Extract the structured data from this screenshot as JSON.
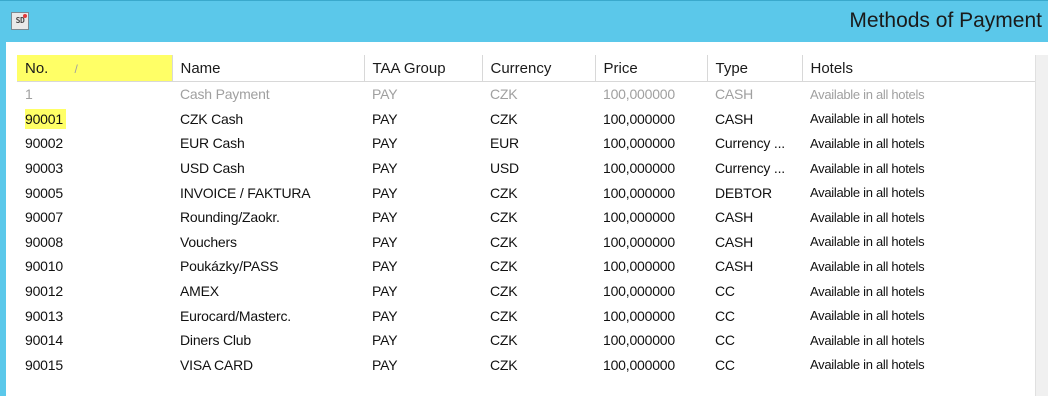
{
  "window": {
    "app_icon_text": "SD",
    "title": "Methods of Payment"
  },
  "colors": {
    "titlebar": "#5bc8ea",
    "highlight": "#ffff66",
    "muted_text": "#a0a0a0"
  },
  "columns": [
    {
      "label": "No.",
      "sort_glyph": "/"
    },
    {
      "label": "Name"
    },
    {
      "label": "TAA Group"
    },
    {
      "label": "Currency"
    },
    {
      "label": "Price"
    },
    {
      "label": "Type"
    },
    {
      "label": "Hotels"
    }
  ],
  "rows": [
    {
      "no": "1",
      "name": "Cash Payment",
      "group": "PAY",
      "currency": "CZK",
      "price": "100,000000",
      "type": "CASH",
      "hotels": "Available in all hotels",
      "muted": true
    },
    {
      "no": "90001",
      "name": "CZK Cash",
      "group": "PAY",
      "currency": "CZK",
      "price": "100,000000",
      "type": "CASH",
      "hotels": "Available in all hotels",
      "highlighted": true
    },
    {
      "no": "90002",
      "name": "EUR Cash",
      "group": "PAY",
      "currency": "EUR",
      "price": "100,000000",
      "type": "Currency ...",
      "hotels": "Available in all hotels"
    },
    {
      "no": "90003",
      "name": "USD Cash",
      "group": "PAY",
      "currency": "USD",
      "price": "100,000000",
      "type": "Currency ...",
      "hotels": "Available in all hotels"
    },
    {
      "no": "90005",
      "name": "INVOICE / FAKTURA",
      "group": "PAY",
      "currency": "CZK",
      "price": "100,000000",
      "type": "DEBTOR",
      "hotels": "Available in all hotels"
    },
    {
      "no": "90007",
      "name": "Rounding/Zaokr.",
      "group": "PAY",
      "currency": "CZK",
      "price": "100,000000",
      "type": "CASH",
      "hotels": "Available in all hotels"
    },
    {
      "no": "90008",
      "name": "Vouchers",
      "group": "PAY",
      "currency": "CZK",
      "price": "100,000000",
      "type": "CASH",
      "hotels": "Available in all hotels"
    },
    {
      "no": "90010",
      "name": "Poukázky/PASS",
      "group": "PAY",
      "currency": "CZK",
      "price": "100,000000",
      "type": "CASH",
      "hotels": "Available in all hotels"
    },
    {
      "no": "90012",
      "name": "AMEX",
      "group": "PAY",
      "currency": "CZK",
      "price": "100,000000",
      "type": "CC",
      "hotels": "Available in all hotels"
    },
    {
      "no": "90013",
      "name": "Eurocard/Masterc.",
      "group": "PAY",
      "currency": "CZK",
      "price": "100,000000",
      "type": "CC",
      "hotels": "Available in all hotels"
    },
    {
      "no": "90014",
      "name": "Diners Club",
      "group": "PAY",
      "currency": "CZK",
      "price": "100,000000",
      "type": "CC",
      "hotels": "Available in all hotels"
    },
    {
      "no": "90015",
      "name": "VISA CARD",
      "group": "PAY",
      "currency": "CZK",
      "price": "100,000000",
      "type": "CC",
      "hotels": "Available in all hotels"
    }
  ]
}
